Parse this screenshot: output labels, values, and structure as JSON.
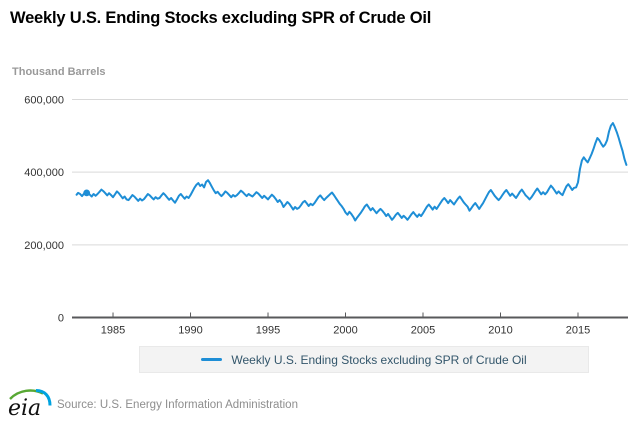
{
  "header": {
    "title": "Weekly U.S. Ending Stocks excluding SPR of Crude Oil"
  },
  "footer": {
    "logo_text": "eia",
    "source": "Source: U.S. Energy Information Administration"
  },
  "colors": {
    "line": "#1e8ed6",
    "grid": "#d9d9d9",
    "axis": "#58595b",
    "tick_label": "#333333",
    "legend_text": "#33566b",
    "legend_bg": "#f3f3f3",
    "units_label": "#999999",
    "source_text": "#8e8e8e",
    "logo_green": "#58a834",
    "logo_blue": "#00a3e0"
  },
  "chart_data": {
    "type": "line",
    "title": "Weekly U.S. Ending Stocks excluding SPR of Crude Oil",
    "xlabel": "",
    "ylabel": "Thousand Barrels",
    "x_range": [
      1982.65,
      2018.2
    ],
    "ylim": [
      0,
      600000
    ],
    "yticks": [
      0,
      200000,
      400000,
      600000
    ],
    "xticks": [
      1985,
      1990,
      1995,
      2000,
      2005,
      2010,
      2015
    ],
    "grid": "horizontal",
    "legend_position": "bottom",
    "first_point_marker": {
      "x": 1983.3,
      "y": 343000
    },
    "series": [
      {
        "name": "Weekly U.S. Ending Stocks excluding SPR of Crude Oil",
        "points": [
          [
            1982.65,
            338000
          ],
          [
            1982.75,
            343000
          ],
          [
            1982.875,
            340000
          ],
          [
            1983.0,
            334000
          ],
          [
            1983.125,
            341000
          ],
          [
            1983.25,
            348000
          ],
          [
            1983.375,
            344000
          ],
          [
            1983.5,
            338000
          ],
          [
            1983.625,
            333000
          ],
          [
            1983.75,
            340000
          ],
          [
            1983.875,
            335000
          ],
          [
            1984.0,
            340000
          ],
          [
            1984.125,
            346000
          ],
          [
            1984.25,
            352000
          ],
          [
            1984.375,
            348000
          ],
          [
            1984.5,
            342000
          ],
          [
            1984.625,
            336000
          ],
          [
            1984.75,
            342000
          ],
          [
            1984.875,
            337000
          ],
          [
            1985.0,
            331000
          ],
          [
            1985.125,
            339000
          ],
          [
            1985.25,
            347000
          ],
          [
            1985.375,
            342000
          ],
          [
            1985.5,
            335000
          ],
          [
            1985.625,
            328000
          ],
          [
            1985.75,
            333000
          ],
          [
            1985.875,
            325000
          ],
          [
            1986.0,
            323000
          ],
          [
            1986.125,
            330000
          ],
          [
            1986.25,
            337000
          ],
          [
            1986.375,
            333000
          ],
          [
            1986.5,
            327000
          ],
          [
            1986.625,
            321000
          ],
          [
            1986.75,
            327000
          ],
          [
            1986.875,
            322000
          ],
          [
            1987.0,
            326000
          ],
          [
            1987.125,
            333000
          ],
          [
            1987.25,
            340000
          ],
          [
            1987.375,
            336000
          ],
          [
            1987.5,
            330000
          ],
          [
            1987.625,
            325000
          ],
          [
            1987.75,
            331000
          ],
          [
            1987.875,
            327000
          ],
          [
            1988.0,
            329000
          ],
          [
            1988.125,
            336000
          ],
          [
            1988.25,
            342000
          ],
          [
            1988.375,
            337000
          ],
          [
            1988.5,
            330000
          ],
          [
            1988.625,
            324000
          ],
          [
            1988.75,
            329000
          ],
          [
            1988.875,
            322000
          ],
          [
            1989.0,
            316000
          ],
          [
            1989.125,
            325000
          ],
          [
            1989.25,
            335000
          ],
          [
            1989.375,
            340000
          ],
          [
            1989.5,
            333000
          ],
          [
            1989.625,
            327000
          ],
          [
            1989.75,
            333000
          ],
          [
            1989.875,
            329000
          ],
          [
            1990.0,
            337000
          ],
          [
            1990.125,
            347000
          ],
          [
            1990.25,
            357000
          ],
          [
            1990.375,
            365000
          ],
          [
            1990.5,
            370000
          ],
          [
            1990.625,
            362000
          ],
          [
            1990.75,
            366000
          ],
          [
            1990.875,
            358000
          ],
          [
            1991.0,
            373000
          ],
          [
            1991.125,
            378000
          ],
          [
            1991.25,
            370000
          ],
          [
            1991.375,
            360000
          ],
          [
            1991.5,
            350000
          ],
          [
            1991.625,
            342000
          ],
          [
            1991.75,
            346000
          ],
          [
            1991.875,
            339000
          ],
          [
            1992.0,
            334000
          ],
          [
            1992.125,
            340000
          ],
          [
            1992.25,
            347000
          ],
          [
            1992.375,
            343000
          ],
          [
            1992.5,
            337000
          ],
          [
            1992.625,
            331000
          ],
          [
            1992.75,
            337000
          ],
          [
            1992.875,
            333000
          ],
          [
            1993.0,
            337000
          ],
          [
            1993.125,
            343000
          ],
          [
            1993.25,
            349000
          ],
          [
            1993.375,
            345000
          ],
          [
            1993.5,
            339000
          ],
          [
            1993.625,
            334000
          ],
          [
            1993.75,
            340000
          ],
          [
            1993.875,
            336000
          ],
          [
            1994.0,
            333000
          ],
          [
            1994.125,
            339000
          ],
          [
            1994.25,
            345000
          ],
          [
            1994.375,
            341000
          ],
          [
            1994.5,
            335000
          ],
          [
            1994.625,
            329000
          ],
          [
            1994.75,
            335000
          ],
          [
            1994.875,
            330000
          ],
          [
            1995.0,
            325000
          ],
          [
            1995.125,
            332000
          ],
          [
            1995.25,
            338000
          ],
          [
            1995.375,
            333000
          ],
          [
            1995.5,
            326000
          ],
          [
            1995.625,
            318000
          ],
          [
            1995.75,
            323000
          ],
          [
            1995.875,
            316000
          ],
          [
            1996.0,
            304000
          ],
          [
            1996.125,
            311000
          ],
          [
            1996.25,
            318000
          ],
          [
            1996.375,
            313000
          ],
          [
            1996.5,
            305000
          ],
          [
            1996.625,
            297000
          ],
          [
            1996.75,
            304000
          ],
          [
            1996.875,
            299000
          ],
          [
            1997.0,
            302000
          ],
          [
            1997.125,
            309000
          ],
          [
            1997.25,
            317000
          ],
          [
            1997.375,
            321000
          ],
          [
            1997.5,
            314000
          ],
          [
            1997.625,
            307000
          ],
          [
            1997.75,
            313000
          ],
          [
            1997.875,
            309000
          ],
          [
            1998.0,
            315000
          ],
          [
            1998.125,
            323000
          ],
          [
            1998.25,
            331000
          ],
          [
            1998.375,
            336000
          ],
          [
            1998.5,
            329000
          ],
          [
            1998.625,
            323000
          ],
          [
            1998.75,
            329000
          ],
          [
            1998.875,
            334000
          ],
          [
            1999.0,
            339000
          ],
          [
            1999.125,
            344000
          ],
          [
            1999.25,
            337000
          ],
          [
            1999.375,
            329000
          ],
          [
            1999.5,
            321000
          ],
          [
            1999.625,
            313000
          ],
          [
            1999.75,
            307000
          ],
          [
            1999.875,
            299000
          ],
          [
            2000.0,
            289000
          ],
          [
            2000.125,
            283000
          ],
          [
            2000.25,
            291000
          ],
          [
            2000.375,
            285000
          ],
          [
            2000.5,
            277000
          ],
          [
            2000.625,
            267000
          ],
          [
            2000.75,
            275000
          ],
          [
            2000.875,
            282000
          ],
          [
            2001.0,
            289000
          ],
          [
            2001.125,
            297000
          ],
          [
            2001.25,
            306000
          ],
          [
            2001.375,
            311000
          ],
          [
            2001.5,
            303000
          ],
          [
            2001.625,
            295000
          ],
          [
            2001.75,
            301000
          ],
          [
            2001.875,
            294000
          ],
          [
            2002.0,
            287000
          ],
          [
            2002.125,
            293000
          ],
          [
            2002.25,
            299000
          ],
          [
            2002.375,
            294000
          ],
          [
            2002.5,
            287000
          ],
          [
            2002.625,
            279000
          ],
          [
            2002.75,
            285000
          ],
          [
            2002.875,
            277000
          ],
          [
            2003.0,
            269000
          ],
          [
            2003.125,
            275000
          ],
          [
            2003.25,
            283000
          ],
          [
            2003.375,
            288000
          ],
          [
            2003.5,
            281000
          ],
          [
            2003.625,
            274000
          ],
          [
            2003.75,
            280000
          ],
          [
            2003.875,
            275000
          ],
          [
            2004.0,
            269000
          ],
          [
            2004.125,
            276000
          ],
          [
            2004.25,
            284000
          ],
          [
            2004.375,
            290000
          ],
          [
            2004.5,
            283000
          ],
          [
            2004.625,
            277000
          ],
          [
            2004.75,
            284000
          ],
          [
            2004.875,
            279000
          ],
          [
            2005.0,
            287000
          ],
          [
            2005.125,
            296000
          ],
          [
            2005.25,
            305000
          ],
          [
            2005.375,
            311000
          ],
          [
            2005.5,
            304000
          ],
          [
            2005.625,
            297000
          ],
          [
            2005.75,
            305000
          ],
          [
            2005.875,
            299000
          ],
          [
            2006.0,
            307000
          ],
          [
            2006.125,
            315000
          ],
          [
            2006.25,
            323000
          ],
          [
            2006.375,
            329000
          ],
          [
            2006.5,
            322000
          ],
          [
            2006.625,
            315000
          ],
          [
            2006.75,
            323000
          ],
          [
            2006.875,
            317000
          ],
          [
            2007.0,
            311000
          ],
          [
            2007.125,
            319000
          ],
          [
            2007.25,
            327000
          ],
          [
            2007.375,
            333000
          ],
          [
            2007.5,
            325000
          ],
          [
            2007.625,
            317000
          ],
          [
            2007.75,
            311000
          ],
          [
            2007.875,
            305000
          ],
          [
            2008.0,
            294000
          ],
          [
            2008.125,
            301000
          ],
          [
            2008.25,
            309000
          ],
          [
            2008.375,
            315000
          ],
          [
            2008.5,
            307000
          ],
          [
            2008.625,
            299000
          ],
          [
            2008.75,
            307000
          ],
          [
            2008.875,
            315000
          ],
          [
            2009.0,
            325000
          ],
          [
            2009.125,
            335000
          ],
          [
            2009.25,
            345000
          ],
          [
            2009.375,
            351000
          ],
          [
            2009.5,
            343000
          ],
          [
            2009.625,
            335000
          ],
          [
            2009.75,
            329000
          ],
          [
            2009.875,
            323000
          ],
          [
            2010.0,
            329000
          ],
          [
            2010.125,
            337000
          ],
          [
            2010.25,
            345000
          ],
          [
            2010.375,
            351000
          ],
          [
            2010.5,
            343000
          ],
          [
            2010.625,
            335000
          ],
          [
            2010.75,
            341000
          ],
          [
            2010.875,
            335000
          ],
          [
            2011.0,
            329000
          ],
          [
            2011.125,
            337000
          ],
          [
            2011.25,
            346000
          ],
          [
            2011.375,
            352000
          ],
          [
            2011.5,
            344000
          ],
          [
            2011.625,
            336000
          ],
          [
            2011.75,
            331000
          ],
          [
            2011.875,
            325000
          ],
          [
            2012.0,
            331000
          ],
          [
            2012.125,
            339000
          ],
          [
            2012.25,
            348000
          ],
          [
            2012.375,
            355000
          ],
          [
            2012.5,
            347000
          ],
          [
            2012.625,
            339000
          ],
          [
            2012.75,
            345000
          ],
          [
            2012.875,
            339000
          ],
          [
            2013.0,
            345000
          ],
          [
            2013.125,
            354000
          ],
          [
            2013.25,
            363000
          ],
          [
            2013.375,
            357000
          ],
          [
            2013.5,
            349000
          ],
          [
            2013.625,
            341000
          ],
          [
            2013.75,
            347000
          ],
          [
            2013.875,
            341000
          ],
          [
            2014.0,
            337000
          ],
          [
            2014.125,
            349000
          ],
          [
            2014.25,
            361000
          ],
          [
            2014.375,
            367000
          ],
          [
            2014.5,
            359000
          ],
          [
            2014.625,
            351000
          ],
          [
            2014.75,
            357000
          ],
          [
            2014.875,
            358000
          ],
          [
            2015.0,
            372000
          ],
          [
            2015.125,
            408000
          ],
          [
            2015.25,
            432000
          ],
          [
            2015.375,
            441000
          ],
          [
            2015.5,
            433000
          ],
          [
            2015.625,
            427000
          ],
          [
            2015.75,
            438000
          ],
          [
            2015.875,
            450000
          ],
          [
            2016.0,
            464000
          ],
          [
            2016.125,
            480000
          ],
          [
            2016.25,
            494000
          ],
          [
            2016.375,
            488000
          ],
          [
            2016.5,
            478000
          ],
          [
            2016.625,
            470000
          ],
          [
            2016.75,
            476000
          ],
          [
            2016.875,
            488000
          ],
          [
            2017.0,
            512000
          ],
          [
            2017.125,
            528000
          ],
          [
            2017.25,
            535000
          ],
          [
            2017.375,
            524000
          ],
          [
            2017.5,
            510000
          ],
          [
            2017.625,
            494000
          ],
          [
            2017.75,
            476000
          ],
          [
            2017.875,
            458000
          ],
          [
            2018.0,
            436000
          ],
          [
            2018.125,
            420000
          ]
        ]
      }
    ]
  }
}
